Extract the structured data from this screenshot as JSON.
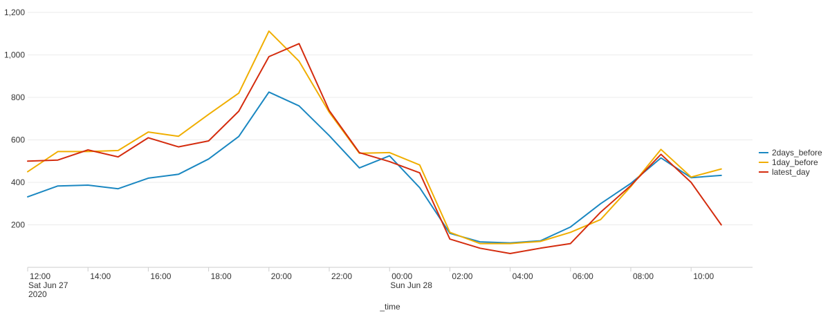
{
  "chart_data": {
    "type": "line",
    "title": "",
    "xlabel": "_time",
    "ylabel": "",
    "ylim": [
      0,
      1200
    ],
    "yticks": [
      "200",
      "400",
      "600",
      "800",
      "1,000",
      "1,200"
    ],
    "ytick_values": [
      200,
      400,
      600,
      800,
      1000,
      1200
    ],
    "xticks": [
      {
        "label": "12:00",
        "sub": [
          "Sat Jun 27",
          "2020"
        ],
        "hour": 12
      },
      {
        "label": "14:00",
        "sub": [],
        "hour": 14
      },
      {
        "label": "16:00",
        "sub": [],
        "hour": 16
      },
      {
        "label": "18:00",
        "sub": [],
        "hour": 18
      },
      {
        "label": "20:00",
        "sub": [],
        "hour": 20
      },
      {
        "label": "22:00",
        "sub": [],
        "hour": 22
      },
      {
        "label": "00:00",
        "sub": [
          "Sun Jun 28"
        ],
        "hour": 24
      },
      {
        "label": "02:00",
        "sub": [],
        "hour": 26
      },
      {
        "label": "04:00",
        "sub": [],
        "hour": 28
      },
      {
        "label": "06:00",
        "sub": [],
        "hour": 30
      },
      {
        "label": "08:00",
        "sub": [],
        "hour": 32
      },
      {
        "label": "10:00",
        "sub": [],
        "hour": 34
      }
    ],
    "x": [
      12,
      13,
      14,
      15,
      16,
      17,
      18,
      19,
      20,
      21,
      22,
      23,
      24,
      25,
      26,
      27,
      28,
      29,
      30,
      31,
      32,
      33,
      34,
      35
    ],
    "series": [
      {
        "name": "2days_before",
        "color": "#1a87c1",
        "values": [
          332,
          383,
          387,
          370,
          420,
          438,
          510,
          616,
          825,
          760,
          620,
          468,
          525,
          375,
          160,
          120,
          115,
          125,
          190,
          300,
          395,
          515,
          422,
          433
        ]
      },
      {
        "name": "1day_before",
        "color": "#f0ae00",
        "values": [
          450,
          545,
          545,
          550,
          637,
          617,
          720,
          820,
          1112,
          970,
          730,
          537,
          540,
          482,
          165,
          112,
          112,
          122,
          165,
          225,
          380,
          555,
          425,
          463
        ]
      },
      {
        "name": "latest_day",
        "color": "#d42c0e",
        "values": [
          500,
          505,
          553,
          520,
          610,
          567,
          595,
          735,
          992,
          1053,
          738,
          540,
          498,
          445,
          133,
          90,
          65,
          90,
          112,
          260,
          385,
          532,
          400,
          200
        ]
      }
    ],
    "legend_position": "right",
    "grid": "horizontal"
  }
}
